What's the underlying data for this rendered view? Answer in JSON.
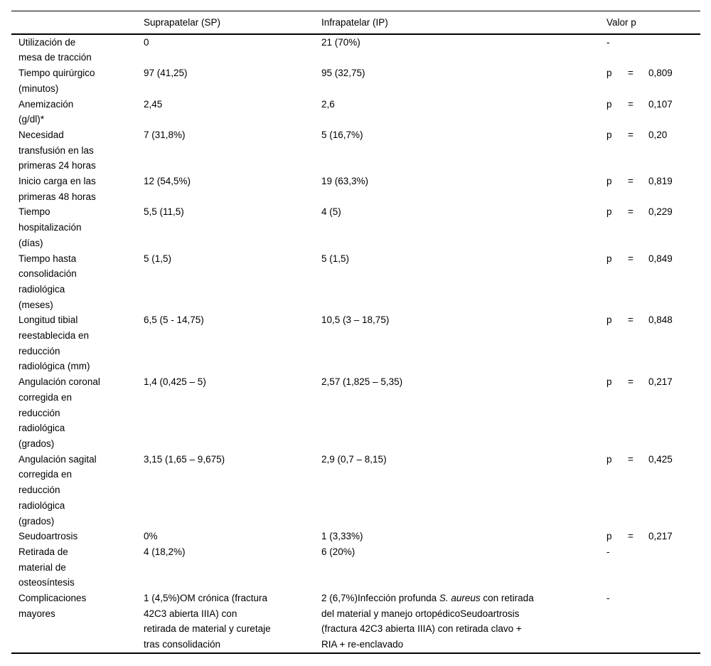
{
  "colors": {
    "background": "#ffffff",
    "text": "#000000",
    "rule": "#000000"
  },
  "table": {
    "columns": [
      "",
      "Suprapatelar (SP)",
      "Infrapatelar (IP)",
      "Valor p"
    ],
    "rows": [
      {
        "label": "Utilización de\nmesa de tracción",
        "sp": "0",
        "ip": "21 (70%)",
        "p_sym": "-",
        "p_eq": "",
        "p_val": ""
      },
      {
        "label": "Tiempo quirúrgico\n(minutos)",
        "sp": "97 (41,25)",
        "ip": "95 (32,75)",
        "p_sym": "p",
        "p_eq": "=",
        "p_val": "0,809"
      },
      {
        "label": "Anemización\n(g/dl)*",
        "sp": "2,45",
        "ip": "2,6",
        "p_sym": "p",
        "p_eq": "=",
        "p_val": "0,107"
      },
      {
        "label": "Necesidad\ntransfusión en las\nprimeras 24 horas",
        "sp": "7 (31,8%)",
        "ip": "5 (16,7%)",
        "p_sym": "p",
        "p_eq": "=",
        "p_val": "0,20"
      },
      {
        "label": "Inicio carga en las\nprimeras 48 horas",
        "sp": "12 (54,5%)",
        "ip": "19 (63,3%)",
        "p_sym": "p",
        "p_eq": "=",
        "p_val": "0,819"
      },
      {
        "label": "Tiempo\nhospitalización\n(días)",
        "sp": "5,5 (11,5)",
        "ip": "4 (5)",
        "p_sym": "p",
        "p_eq": "=",
        "p_val": "0,229"
      },
      {
        "label": "Tiempo hasta\nconsolidación\nradiológica\n(meses)",
        "sp": "5 (1,5)",
        "ip": "5 (1,5)",
        "p_sym": "p",
        "p_eq": "=",
        "p_val": "0,849"
      },
      {
        "label": "Longitud tibial\nreestablecida en\nreducción\nradiológica (mm)",
        "sp": "6,5 (5 - 14,75)",
        "ip": "10,5 (3 – 18,75)",
        "p_sym": "p",
        "p_eq": "=",
        "p_val": "0,848"
      },
      {
        "label": "Angulación coronal\ncorregida en\nreducción\nradiológica\n(grados)",
        "sp": "1,4 (0,425 – 5)",
        "ip": "2,57 (1,825 – 5,35)",
        "p_sym": "p",
        "p_eq": "=",
        "p_val": "0,217"
      },
      {
        "label": "Angulación sagital\ncorregida en\nreducción\nradiológica\n(grados)",
        "sp": "3,15 (1,65 – 9,675)",
        "ip": "2,9 (0,7 – 8,15)",
        "p_sym": "p",
        "p_eq": "=",
        "p_val": "0,425"
      },
      {
        "label": "Seudoartrosis",
        "sp": "0%",
        "ip": "1 (3,33%)",
        "p_sym": "p",
        "p_eq": "=",
        "p_val": "0,217"
      },
      {
        "label": "Retirada de\nmaterial de\nosteosíntesis",
        "sp": "4 (18,2%)",
        "ip": "6 (20%)",
        "p_sym": "-",
        "p_eq": "",
        "p_val": ""
      },
      {
        "label": "Complicaciones\nmayores",
        "sp": "1 (4,5%)OM crónica (fractura\n42C3 abierta IIIA) con\nretirada de material y curetaje\ntras consolidación",
        "ip_pre": "2 (6,7%)Infección profunda ",
        "ip_italic": "S. aureus",
        "ip_post": " con retirada\ndel material y manejo ortopédicoSeudoartrosis\n(fractura 42C3 abierta IIIA) con retirada clavo +\nRIA + re-enclavado",
        "p_sym": "-",
        "p_eq": "",
        "p_val": ""
      }
    ]
  }
}
